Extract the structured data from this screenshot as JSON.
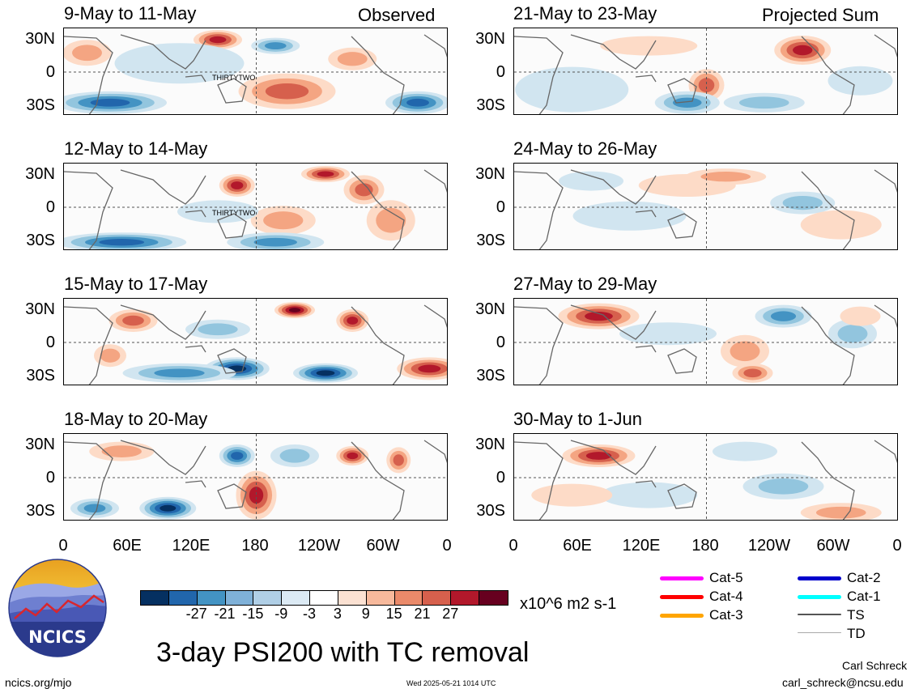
{
  "panels": [
    {
      "title": "9-May to 11-May",
      "corner": "Observed",
      "storm_label": "THIRTYTWO"
    },
    {
      "title": "12-May to 14-May",
      "corner": "",
      "storm_label": "THIRTYTWO"
    },
    {
      "title": "15-May to 17-May",
      "corner": "",
      "storm_label": ""
    },
    {
      "title": "18-May to 20-May",
      "corner": "",
      "storm_label": ""
    },
    {
      "title": "21-May to 23-May",
      "corner": "Projected Sum",
      "storm_label": ""
    },
    {
      "title": "24-May to 26-May",
      "corner": "",
      "storm_label": ""
    },
    {
      "title": "27-May to 29-May",
      "corner": "",
      "storm_label": ""
    },
    {
      "title": "30-May to 1-Jun",
      "corner": "",
      "storm_label": ""
    }
  ],
  "lat_labels": [
    "30N",
    "0",
    "30S"
  ],
  "lon_labels": [
    "0",
    "60E",
    "120E",
    "180",
    "120W",
    "60W",
    "0"
  ],
  "colorbar": {
    "colors": [
      "#053061",
      "#2166ac",
      "#4393c3",
      "#7fb1d8",
      "#b0cfe6",
      "#dceaf4",
      "#ffffff",
      "#fbe1d2",
      "#f7b99c",
      "#ea8a6a",
      "#d6604d",
      "#b2182b",
      "#67001f"
    ],
    "labels": [
      "-27",
      "-21",
      "-15",
      "-9",
      "-3",
      "3",
      "9",
      "15",
      "21",
      "27"
    ],
    "units": "x10^6 m2 s-1"
  },
  "tc_legend": [
    {
      "label": "Cat-5",
      "color": "#ff00ff"
    },
    {
      "label": "Cat-4",
      "color": "#ff0000"
    },
    {
      "label": "Cat-3",
      "color": "#ffa500"
    },
    {
      "label": "Cat-2",
      "color": "#0000cc"
    },
    {
      "label": "Cat-1",
      "color": "#00ffff"
    },
    {
      "label": "TS",
      "color": "#555555"
    },
    {
      "label": "TD",
      "color": "#aaaaaa"
    }
  ],
  "main_title": "3-day PSI200 with TC removal",
  "logo_text": "NCICS",
  "footer": {
    "url": "ncics.org/mjo",
    "timestamp": "Wed 2025-05-21 1014 UTC",
    "author": "Carl Schreck",
    "email": "carl_schreck@ncsu.edu"
  }
}
